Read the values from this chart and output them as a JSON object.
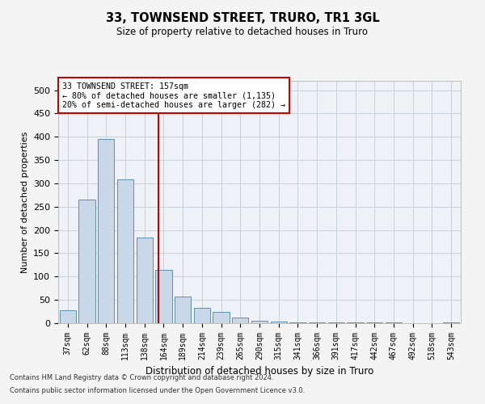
{
  "title1": "33, TOWNSEND STREET, TRURO, TR1 3GL",
  "title2": "Size of property relative to detached houses in Truro",
  "xlabel": "Distribution of detached houses by size in Truro",
  "ylabel": "Number of detached properties",
  "categories": [
    "37sqm",
    "62sqm",
    "88sqm",
    "113sqm",
    "138sqm",
    "164sqm",
    "189sqm",
    "214sqm",
    "239sqm",
    "265sqm",
    "290sqm",
    "315sqm",
    "341sqm",
    "366sqm",
    "391sqm",
    "417sqm",
    "442sqm",
    "467sqm",
    "492sqm",
    "518sqm",
    "543sqm"
  ],
  "values": [
    28,
    265,
    395,
    308,
    183,
    115,
    57,
    33,
    24,
    13,
    6,
    4,
    2,
    1,
    1,
    1,
    1,
    1,
    0,
    0,
    2
  ],
  "bar_color": "#c8d8e8",
  "bar_edge_color": "#6090b0",
  "ylim": [
    0,
    520
  ],
  "yticks": [
    0,
    50,
    100,
    150,
    200,
    250,
    300,
    350,
    400,
    450,
    500
  ],
  "property_label": "33 TOWNSEND STREET: 157sqm",
  "annotation_line1": "← 80% of detached houses are smaller (1,135)",
  "annotation_line2": "20% of semi-detached houses are larger (282) →",
  "vline_color": "#cc0000",
  "annotation_box_edge": "#cc0000",
  "footnote1": "Contains HM Land Registry data © Crown copyright and database right 2024.",
  "footnote2": "Contains public sector information licensed under the Open Government Licence v3.0.",
  "bg_color": "#eef2f7",
  "grid_color": "#c8d0da",
  "fig_bg": "#f4f4f4"
}
